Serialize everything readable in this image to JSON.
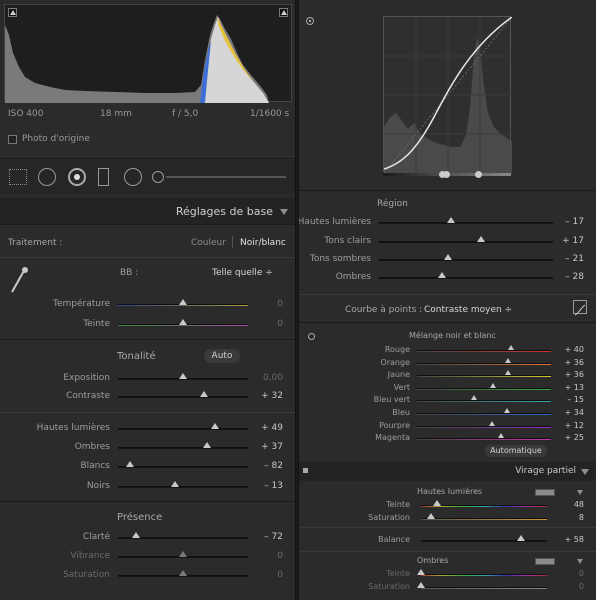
{
  "histogram": {
    "iso": "ISO 400",
    "focal": "18 mm",
    "aperture": "f / 5,0",
    "shutter": "1/1600 s",
    "original_photo_label": "Photo d'origine"
  },
  "basic": {
    "panel_title": "Réglages de base",
    "treatment_label": "Traitement :",
    "treatment_color": "Couleur",
    "treatment_bw": "Noir/blanc",
    "wb_label": "BB :",
    "wb_value": "Telle quelle ÷",
    "temperature": {
      "label": "Température",
      "value": "0",
      "position": 0.5
    },
    "tint": {
      "label": "Teinte",
      "value": "0",
      "position": 0.5
    },
    "tone_title": "Tonalité",
    "auto_label": "Auto",
    "exposure": {
      "label": "Exposition",
      "value": "0,00",
      "position": 0.5
    },
    "contrast": {
      "label": "Contraste",
      "value": "+ 32",
      "position": 0.66
    },
    "highlights": {
      "label": "Hautes lumières",
      "value": "+ 49",
      "position": 0.745
    },
    "shadows": {
      "label": "Ombres",
      "value": "+ 37",
      "position": 0.685
    },
    "whites": {
      "label": "Blancs",
      "value": "– 82",
      "position": 0.09
    },
    "blacks": {
      "label": "Noirs",
      "value": "– 13",
      "position": 0.435
    },
    "presence_title": "Présence",
    "clarity": {
      "label": "Clarté",
      "value": "– 72",
      "position": 0.14
    },
    "vibrance": {
      "label": "Vibrance",
      "value": "0",
      "position": 0.5
    },
    "saturation": {
      "label": "Saturation",
      "value": "0",
      "position": 0.5
    }
  },
  "tone_curve": {
    "region_title": "Région",
    "highlights": {
      "label": "Hautes lumières",
      "value": "– 17",
      "position": 0.415
    },
    "lights": {
      "label": "Tons clairs",
      "value": "+ 17",
      "position": 0.585
    },
    "darks": {
      "label": "Tons sombres",
      "value": "– 21",
      "position": 0.395
    },
    "shadows": {
      "label": "Ombres",
      "value": "– 28",
      "position": 0.36
    },
    "point_curve_label": "Courbe à points :",
    "point_curve_value": "Contraste moyen ÷"
  },
  "bw_mix": {
    "title": "Mélange noir et blanc",
    "channels": [
      {
        "label": "Rouge",
        "value": "+ 40",
        "position": 0.7
      },
      {
        "label": "Orange",
        "value": "+ 36",
        "position": 0.68
      },
      {
        "label": "Jaune",
        "value": "+ 36",
        "position": 0.68
      },
      {
        "label": "Vert",
        "value": "+ 13",
        "position": 0.565
      },
      {
        "label": "Bleu vert",
        "value": "– 15",
        "position": 0.425
      },
      {
        "label": "Bleu",
        "value": "+ 34",
        "position": 0.67
      },
      {
        "label": "Pourpre",
        "value": "+ 12",
        "position": 0.56
      },
      {
        "label": "Magenta",
        "value": "+ 25",
        "position": 0.625
      }
    ],
    "auto_label": "Automatique"
  },
  "split_toning": {
    "panel_title": "Virage partiel",
    "highlights_title": "Hautes lumières",
    "hl_hue": {
      "label": "Teinte",
      "value": "48",
      "position": 0.13
    },
    "hl_saturation": {
      "label": "Saturation",
      "value": "8",
      "position": 0.08
    },
    "balance": {
      "label": "Balance",
      "value": "+ 58",
      "position": 0.79
    },
    "shadows_title": "Ombres",
    "sh_hue": {
      "label": "Teinte",
      "value": "0",
      "position": 0.0
    },
    "sh_saturation": {
      "label": "Saturation",
      "value": "0",
      "position": 0.0
    }
  },
  "colors": {
    "panel_bg": "#2b2b2b",
    "header_bg": "#232323",
    "track": "#151515",
    "thumb": "#c9c9c9",
    "curve_bg": "#2f2f2f"
  }
}
